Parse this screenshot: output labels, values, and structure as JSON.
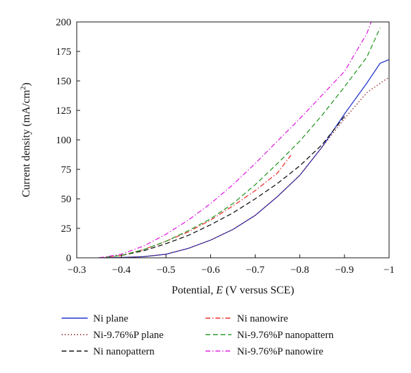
{
  "chart_data": {
    "type": "line",
    "title": "",
    "xlabel": "Potential, E (V versus SCE)",
    "xlabel_parts": [
      "Potential, ",
      "E",
      " (V versus SCE)"
    ],
    "ylabel": "Current density (mA/cm2)",
    "ylabel_parts": [
      "Current density (mA/cm",
      "2",
      ")"
    ],
    "xlim": [
      -0.3,
      -1
    ],
    "ylim": [
      0,
      200
    ],
    "x_ticks": [
      -0.3,
      -0.4,
      -0.5,
      -0.6,
      -0.7,
      -0.8,
      -0.9,
      -1
    ],
    "x_tick_labels": [
      "−0.3",
      "−0.4",
      "−0.5",
      "−0.6",
      "−0.7",
      "−0.8",
      "−0.9",
      "−1"
    ],
    "y_ticks": [
      0,
      25,
      50,
      75,
      100,
      125,
      150,
      175,
      200
    ],
    "y_tick_labels": [
      "0",
      "25",
      "50",
      "75",
      "100",
      "125",
      "150",
      "175",
      "200"
    ],
    "grid": false,
    "legend_position": "bottom",
    "series": [
      {
        "name": "Ni plane",
        "color": "#2233cc",
        "dash": "solid",
        "x": [
          -0.36,
          -0.4,
          -0.45,
          -0.5,
          -0.55,
          -0.6,
          -0.65,
          -0.7,
          -0.75,
          -0.8,
          -0.85,
          -0.9,
          -0.95,
          -0.98,
          -1.0
        ],
        "y": [
          0,
          0.3,
          1,
          3,
          8,
          15,
          24,
          36,
          52,
          70,
          94,
          122,
          148,
          165,
          168
        ]
      },
      {
        "name": "Ni-9.76%P plane",
        "color": "#8b1a1a",
        "dash": "dotted",
        "x": [
          -0.36,
          -0.4,
          -0.45,
          -0.5,
          -0.55,
          -0.6,
          -0.65,
          -0.7,
          -0.75,
          -0.8,
          -0.85,
          -0.9,
          -0.95,
          -0.98,
          -1.0
        ],
        "y": [
          0,
          0.3,
          1,
          3,
          8,
          15,
          24,
          36,
          52,
          70,
          94,
          118,
          140,
          148,
          153
        ]
      },
      {
        "name": "Ni nanopattern",
        "color": "#111111",
        "dash": "dashed",
        "x": [
          -0.35,
          -0.4,
          -0.45,
          -0.5,
          -0.55,
          -0.6,
          -0.65,
          -0.7,
          -0.75,
          -0.8,
          -0.85,
          -0.9
        ],
        "y": [
          0,
          2,
          6,
          12,
          19,
          28,
          38,
          50,
          63,
          78,
          96,
          120
        ]
      },
      {
        "name": "Ni nanowire",
        "color": "#e8302a",
        "dash": "dashdot",
        "x": [
          -0.35,
          -0.4,
          -0.45,
          -0.5,
          -0.55,
          -0.6,
          -0.65,
          -0.7,
          -0.75,
          -0.78
        ],
        "y": [
          0,
          2,
          7,
          14,
          22,
          32,
          44,
          57,
          72,
          87
        ]
      },
      {
        "name": "Ni-9.76%P nanopattern",
        "color": "#2a9a2a",
        "dash": "dashed",
        "x": [
          -0.35,
          -0.4,
          -0.45,
          -0.5,
          -0.55,
          -0.6,
          -0.65,
          -0.7,
          -0.75,
          -0.8,
          -0.85,
          -0.9,
          -0.95,
          -0.98
        ],
        "y": [
          0,
          2,
          7,
          14,
          23,
          33,
          46,
          62,
          80,
          99,
          121,
          145,
          170,
          195
        ]
      },
      {
        "name": "Ni-9.76%P nanowire",
        "color": "#e020e0",
        "dash": "dashdot",
        "x": [
          -0.35,
          -0.4,
          -0.45,
          -0.5,
          -0.55,
          -0.6,
          -0.65,
          -0.7,
          -0.75,
          -0.8,
          -0.85,
          -0.9,
          -0.95,
          -0.96
        ],
        "y": [
          0,
          3,
          10,
          20,
          32,
          46,
          62,
          80,
          99,
          118,
          138,
          158,
          190,
          200
        ]
      }
    ]
  }
}
